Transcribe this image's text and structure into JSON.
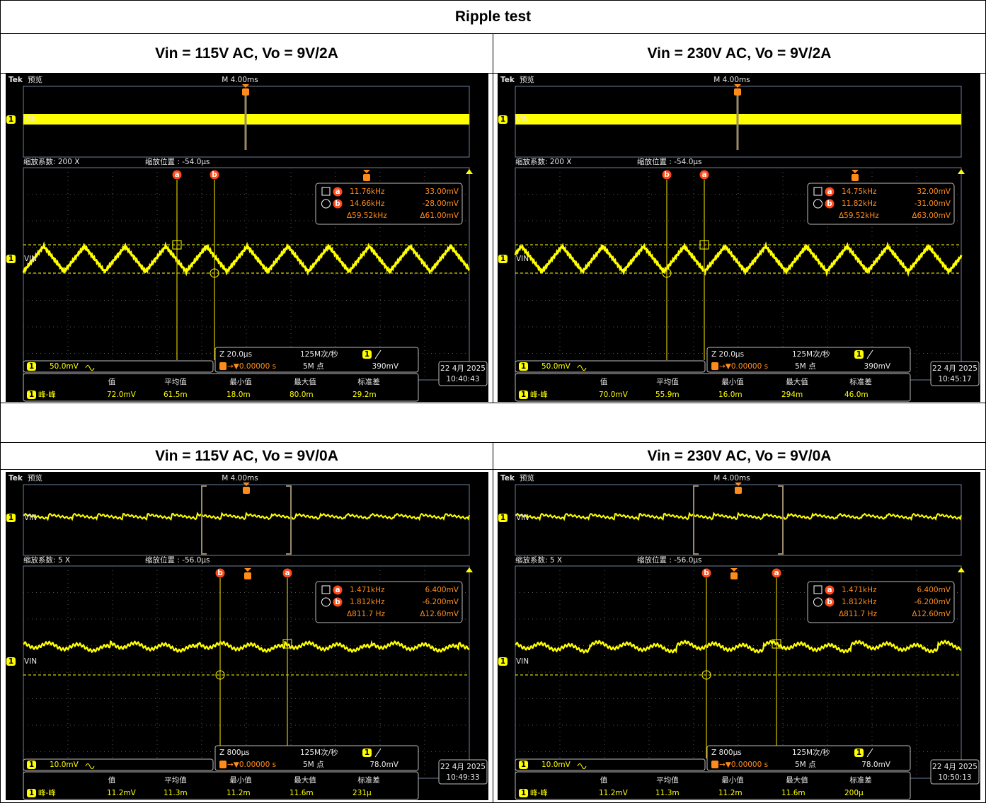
{
  "table": {
    "title": "Ripple test",
    "panels": [
      {
        "heading": "Vin = 115V AC, Vo = 9V/2A",
        "scope": {
          "brand": "Tek",
          "mode": "预览",
          "timebase": "M 4.00ms",
          "zoom_factor": "缩放系数: 200 X",
          "zoom_position": "缩放位置 : -54.0μs",
          "channel_number": "1",
          "channel": "VIN",
          "cursors": [
            {
              "label": "a",
              "freq": "11.76kHz",
              "volt": "33.00mV"
            },
            {
              "label": "b",
              "freq": "14.66kHz",
              "volt": "-28.00mV"
            }
          ],
          "cursor_delta": {
            "freq": "Δ59.52kHz",
            "volt": "Δ61.00mV"
          },
          "scale": "50.0mV",
          "zoom_timebase": "Z 20.0μs",
          "sample_rate": "125M次/秒",
          "record_length": "5M 点",
          "trigger_position": "→▼0.00000 s",
          "trigger_level": "390mV",
          "date": "22 4月 2025",
          "time": "10:40:43",
          "measure": {
            "headers": [
              "值",
              "平均值",
              "最小值",
              "最大值",
              "标准差"
            ],
            "name": "峰-峰",
            "values": [
              "72.0mV",
              "61.5m",
              "18.0m",
              "80.0m",
              "29.2m"
            ]
          }
        }
      },
      {
        "heading": "Vin = 230V AC, Vo = 9V/2A",
        "scope": {
          "brand": "Tek",
          "mode": "预览",
          "timebase": "M 4.00ms",
          "zoom_factor": "缩放系数: 200 X",
          "zoom_position": "缩放位置 : -54.0μs",
          "channel_number": "1",
          "channel": "VIN",
          "cursors": [
            {
              "label": "a",
              "freq": "14.75kHz",
              "volt": "32.00mV"
            },
            {
              "label": "b",
              "freq": "11.82kHz",
              "volt": "-31.00mV"
            }
          ],
          "cursor_delta": {
            "freq": "Δ59.52kHz",
            "volt": "Δ63.00mV"
          },
          "scale": "50.0mV",
          "zoom_timebase": "Z 20.0μs",
          "sample_rate": "125M次/秒",
          "record_length": "5M 点",
          "trigger_position": "→▼0.00000 s",
          "trigger_level": "390mV",
          "date": "22 4月 2025",
          "time": "10:45:17",
          "measure": {
            "headers": [
              "值",
              "平均值",
              "最小值",
              "最大值",
              "标准差"
            ],
            "name": "峰-峰",
            "values": [
              "70.0mV",
              "55.9m",
              "16.0m",
              "294m",
              "46.0m"
            ]
          }
        }
      },
      {
        "heading": "Vin = 115V AC, Vo = 9V/0A",
        "scope": {
          "brand": "Tek",
          "mode": "预览",
          "timebase": "M 4.00ms",
          "zoom_factor": "缩放系数: 5 X",
          "zoom_position": "缩放位置 : -56.0μs",
          "channel_number": "1",
          "channel": "VIN",
          "cursors": [
            {
              "label": "a",
              "freq": "1.471kHz",
              "volt": "6.400mV"
            },
            {
              "label": "b",
              "freq": "1.812kHz",
              "volt": "-6.200mV"
            }
          ],
          "cursor_delta": {
            "freq": "Δ811.7 Hz",
            "volt": "Δ12.60mV"
          },
          "scale": "10.0mV",
          "zoom_timebase": "Z 800μs",
          "sample_rate": "125M次/秒",
          "record_length": "5M 点",
          "trigger_position": "→▼0.00000 s",
          "trigger_level": "78.0mV",
          "date": "22 4月 2025",
          "time": "10:49:33",
          "measure": {
            "headers": [
              "值",
              "平均值",
              "最小值",
              "最大值",
              "标准差"
            ],
            "name": "峰-峰",
            "values": [
              "11.2mV",
              "11.3m",
              "11.2m",
              "11.6m",
              "231μ"
            ]
          }
        }
      },
      {
        "heading": "Vin = 230V AC, Vo = 9V/0A",
        "scope": {
          "brand": "Tek",
          "mode": "预览",
          "timebase": "M 4.00ms",
          "zoom_factor": "缩放系数: 5 X",
          "zoom_position": "缩放位置 : -56.0μs",
          "channel_number": "1",
          "channel": "VIN",
          "cursors": [
            {
              "label": "a",
              "freq": "1.471kHz",
              "volt": "6.400mV"
            },
            {
              "label": "b",
              "freq": "1.812kHz",
              "volt": "-6.200mV"
            }
          ],
          "cursor_delta": {
            "freq": "Δ811.7 Hz",
            "volt": "Δ12.60mV"
          },
          "scale": "10.0mV",
          "zoom_timebase": "Z 800μs",
          "sample_rate": "125M次/秒",
          "record_length": "5M 点",
          "trigger_position": "→▼0.00000 s",
          "trigger_level": "78.0mV",
          "date": "22 4月 2025",
          "time": "10:50:13",
          "measure": {
            "headers": [
              "值",
              "平均值",
              "最小值",
              "最大值",
              "标准差"
            ],
            "name": "峰-峰",
            "values": [
              "11.2mV",
              "11.3m",
              "11.2m",
              "11.6m",
              "200μ"
            ]
          }
        }
      }
    ]
  }
}
